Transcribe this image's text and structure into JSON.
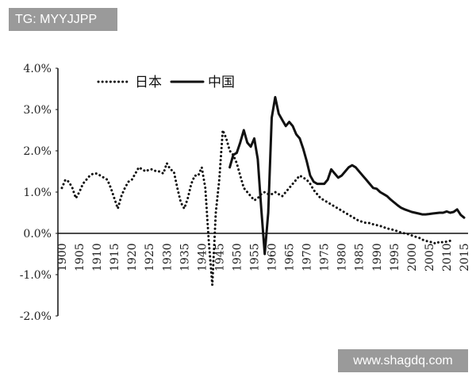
{
  "watermarks": {
    "top_left": "TG: MYYJJPP",
    "bottom_right": "www.shagdq.com"
  },
  "chart_data": {
    "type": "line",
    "title": "",
    "xlabel": "",
    "ylabel": "",
    "xlim": [
      1900,
      2015
    ],
    "ylim": [
      -2.0,
      4.0
    ],
    "y_ticks": [
      "4.0%",
      "3.0%",
      "2.0%",
      "1.0%",
      "0.0%",
      "-1.0%",
      "-2.0%"
    ],
    "x_ticks": [
      "1900",
      "1905",
      "1910",
      "1915",
      "1920",
      "1925",
      "1930",
      "1935",
      "1940",
      "1945",
      "1950",
      "1955",
      "1960",
      "1965",
      "1970",
      "1975",
      "1980",
      "1985",
      "1990",
      "1995",
      "2000",
      "2005",
      "2010",
      "2015"
    ],
    "legend": {
      "position": "top-left"
    },
    "grid": false,
    "series": [
      {
        "name": "日本",
        "style": "dotted",
        "color": "#111111",
        "points": [
          [
            1900,
            1.1
          ],
          [
            1901,
            1.3
          ],
          [
            1902,
            1.25
          ],
          [
            1903,
            1.1
          ],
          [
            1904,
            0.85
          ],
          [
            1905,
            1.0
          ],
          [
            1906,
            1.2
          ],
          [
            1907,
            1.3
          ],
          [
            1908,
            1.4
          ],
          [
            1909,
            1.45
          ],
          [
            1910,
            1.45
          ],
          [
            1911,
            1.4
          ],
          [
            1912,
            1.35
          ],
          [
            1913,
            1.3
          ],
          [
            1914,
            1.1
          ],
          [
            1915,
            0.85
          ],
          [
            1916,
            0.6
          ],
          [
            1917,
            0.9
          ],
          [
            1918,
            1.1
          ],
          [
            1919,
            1.25
          ],
          [
            1920,
            1.3
          ],
          [
            1921,
            1.45
          ],
          [
            1922,
            1.6
          ],
          [
            1923,
            1.55
          ],
          [
            1924,
            1.5
          ],
          [
            1925,
            1.55
          ],
          [
            1926,
            1.55
          ],
          [
            1927,
            1.5
          ],
          [
            1928,
            1.5
          ],
          [
            1929,
            1.45
          ],
          [
            1930,
            1.7
          ],
          [
            1931,
            1.55
          ],
          [
            1932,
            1.5
          ],
          [
            1933,
            1.1
          ],
          [
            1934,
            0.75
          ],
          [
            1935,
            0.6
          ],
          [
            1936,
            0.85
          ],
          [
            1937,
            1.2
          ],
          [
            1938,
            1.4
          ],
          [
            1939,
            1.4
          ],
          [
            1940,
            1.6
          ],
          [
            1941,
            1.1
          ],
          [
            1942,
            -0.2
          ],
          [
            1943,
            -1.25
          ],
          [
            1944,
            0.5
          ],
          [
            1945,
            1.3
          ],
          [
            1946,
            2.5
          ],
          [
            1947,
            2.3
          ],
          [
            1948,
            2.0
          ],
          [
            1949,
            1.9
          ],
          [
            1950,
            1.7
          ],
          [
            1951,
            1.4
          ],
          [
            1952,
            1.1
          ],
          [
            1953,
            1.0
          ],
          [
            1954,
            0.9
          ],
          [
            1955,
            0.8
          ],
          [
            1956,
            0.85
          ],
          [
            1957,
            0.95
          ],
          [
            1958,
            1.0
          ],
          [
            1959,
            0.95
          ],
          [
            1960,
            0.95
          ],
          [
            1961,
            1.0
          ],
          [
            1962,
            0.95
          ],
          [
            1963,
            0.9
          ],
          [
            1964,
            1.0
          ],
          [
            1965,
            1.1
          ],
          [
            1966,
            1.2
          ],
          [
            1967,
            1.3
          ],
          [
            1968,
            1.4
          ],
          [
            1969,
            1.35
          ],
          [
            1970,
            1.3
          ],
          [
            1971,
            1.2
          ],
          [
            1972,
            1.05
          ],
          [
            1973,
            0.95
          ],
          [
            1974,
            0.85
          ],
          [
            1975,
            0.8
          ],
          [
            1976,
            0.75
          ],
          [
            1977,
            0.7
          ],
          [
            1978,
            0.65
          ],
          [
            1979,
            0.6
          ],
          [
            1980,
            0.55
          ],
          [
            1981,
            0.5
          ],
          [
            1982,
            0.45
          ],
          [
            1983,
            0.4
          ],
          [
            1984,
            0.35
          ],
          [
            1985,
            0.3
          ],
          [
            1986,
            0.28
          ],
          [
            1987,
            0.25
          ],
          [
            1988,
            0.25
          ],
          [
            1989,
            0.22
          ],
          [
            1990,
            0.2
          ],
          [
            1991,
            0.18
          ],
          [
            1992,
            0.15
          ],
          [
            1993,
            0.12
          ],
          [
            1994,
            0.1
          ],
          [
            1995,
            0.08
          ],
          [
            1996,
            0.05
          ],
          [
            1997,
            0.02
          ],
          [
            1998,
            0.0
          ],
          [
            1999,
            -0.02
          ],
          [
            2000,
            -0.05
          ],
          [
            2001,
            -0.08
          ],
          [
            2002,
            -0.1
          ],
          [
            2003,
            -0.15
          ],
          [
            2004,
            -0.18
          ],
          [
            2005,
            -0.2
          ],
          [
            2006,
            -0.22
          ],
          [
            2007,
            -0.25
          ],
          [
            2008,
            -0.2
          ],
          [
            2009,
            -0.22
          ],
          [
            2010,
            -0.2
          ],
          [
            2011,
            -0.18
          ],
          [
            2012,
            -0.2
          ]
        ]
      },
      {
        "name": "中国",
        "style": "solid",
        "color": "#111111",
        "points": [
          [
            1948,
            1.6
          ],
          [
            1949,
            1.9
          ],
          [
            1950,
            1.95
          ],
          [
            1951,
            2.2
          ],
          [
            1952,
            2.5
          ],
          [
            1953,
            2.2
          ],
          [
            1954,
            2.1
          ],
          [
            1955,
            2.3
          ],
          [
            1956,
            1.8
          ],
          [
            1957,
            0.6
          ],
          [
            1958,
            -0.5
          ],
          [
            1959,
            0.5
          ],
          [
            1960,
            2.8
          ],
          [
            1961,
            3.3
          ],
          [
            1962,
            2.9
          ],
          [
            1963,
            2.75
          ],
          [
            1964,
            2.6
          ],
          [
            1965,
            2.7
          ],
          [
            1966,
            2.6
          ],
          [
            1967,
            2.4
          ],
          [
            1968,
            2.3
          ],
          [
            1969,
            2.05
          ],
          [
            1970,
            1.75
          ],
          [
            1971,
            1.4
          ],
          [
            1972,
            1.25
          ],
          [
            1973,
            1.2
          ],
          [
            1974,
            1.2
          ],
          [
            1975,
            1.2
          ],
          [
            1976,
            1.3
          ],
          [
            1977,
            1.55
          ],
          [
            1978,
            1.45
          ],
          [
            1979,
            1.35
          ],
          [
            1980,
            1.4
          ],
          [
            1981,
            1.5
          ],
          [
            1982,
            1.6
          ],
          [
            1983,
            1.65
          ],
          [
            1984,
            1.6
          ],
          [
            1985,
            1.5
          ],
          [
            1986,
            1.4
          ],
          [
            1987,
            1.3
          ],
          [
            1988,
            1.2
          ],
          [
            1989,
            1.1
          ],
          [
            1990,
            1.08
          ],
          [
            1991,
            1.0
          ],
          [
            1992,
            0.95
          ],
          [
            1993,
            0.9
          ],
          [
            1994,
            0.82
          ],
          [
            1995,
            0.75
          ],
          [
            1996,
            0.68
          ],
          [
            1997,
            0.62
          ],
          [
            1998,
            0.58
          ],
          [
            1999,
            0.55
          ],
          [
            2000,
            0.52
          ],
          [
            2001,
            0.5
          ],
          [
            2002,
            0.48
          ],
          [
            2003,
            0.46
          ],
          [
            2004,
            0.46
          ],
          [
            2005,
            0.47
          ],
          [
            2006,
            0.48
          ],
          [
            2007,
            0.49
          ],
          [
            2008,
            0.5
          ],
          [
            2009,
            0.5
          ],
          [
            2010,
            0.53
          ],
          [
            2011,
            0.5
          ],
          [
            2012,
            0.52
          ],
          [
            2013,
            0.58
          ],
          [
            2014,
            0.45
          ],
          [
            2015,
            0.38
          ]
        ]
      }
    ]
  }
}
